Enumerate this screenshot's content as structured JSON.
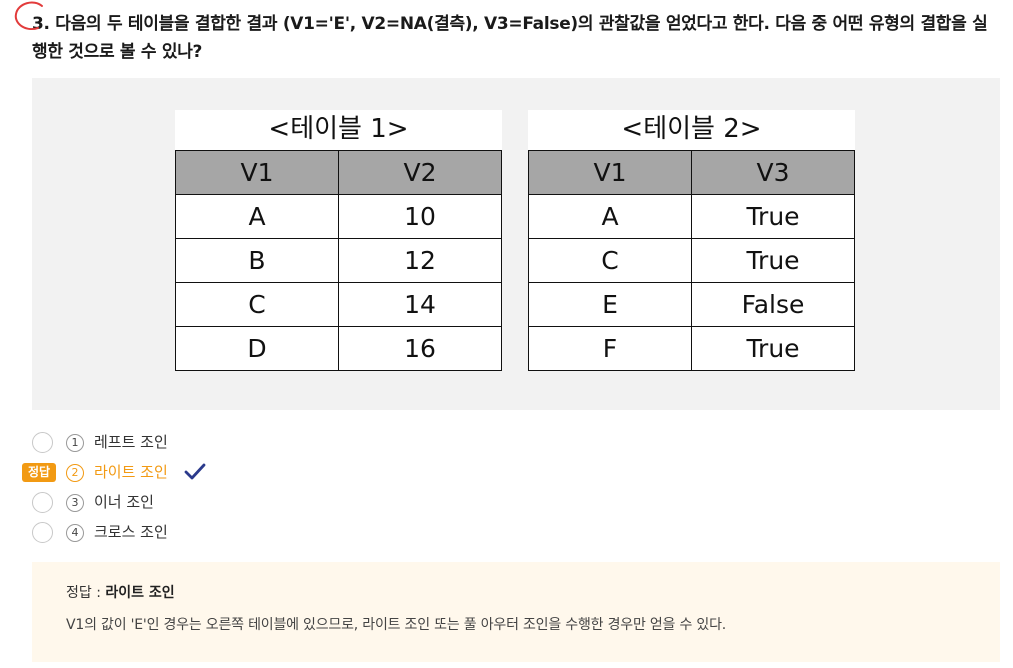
{
  "question": {
    "text": "3. 다음의 두 테이블을 결합한 결과 (V1='E', V2=NA(결측), V3=False)의 관찰값을 얻었다고 한다. 다음 중 어떤 유형의 결합을 실행한 것으로 볼 수 있나?"
  },
  "table1": {
    "caption": "<테이블 1>",
    "headers": [
      "V1",
      "V2"
    ],
    "rows": [
      [
        "A",
        "10"
      ],
      [
        "B",
        "12"
      ],
      [
        "C",
        "14"
      ],
      [
        "D",
        "16"
      ]
    ]
  },
  "table2": {
    "caption": "<테이블 2>",
    "headers": [
      "V1",
      "V3"
    ],
    "rows": [
      [
        "A",
        "True"
      ],
      [
        "C",
        "True"
      ],
      [
        "E",
        "False"
      ],
      [
        "F",
        "True"
      ]
    ]
  },
  "options": [
    {
      "num": "1",
      "label": "레프트 조인"
    },
    {
      "num": "2",
      "label": "라이트 조인"
    },
    {
      "num": "3",
      "label": "이너 조인"
    },
    {
      "num": "4",
      "label": "크로스 조인"
    }
  ],
  "correct_badge": "정답",
  "answer": {
    "prefix": "정답 : ",
    "value": "라이트 조인",
    "explanation": "V1의 값이 'E'인 경우는 오른쪽 테이블에 있으므로, 라이트 조인 또는 풀 아우터 조인을 수행한 경우만 얻을 수 있다."
  },
  "colors": {
    "accent": "#f29a13",
    "check": "#2b3a8c",
    "mark": "#e23b3b",
    "figure_bg": "#f2f2f2",
    "header_bg": "#a6a6a6",
    "answer_bg": "#fff8ec"
  },
  "icons": {
    "check": "check-icon",
    "mark": "red-circle-mark"
  }
}
